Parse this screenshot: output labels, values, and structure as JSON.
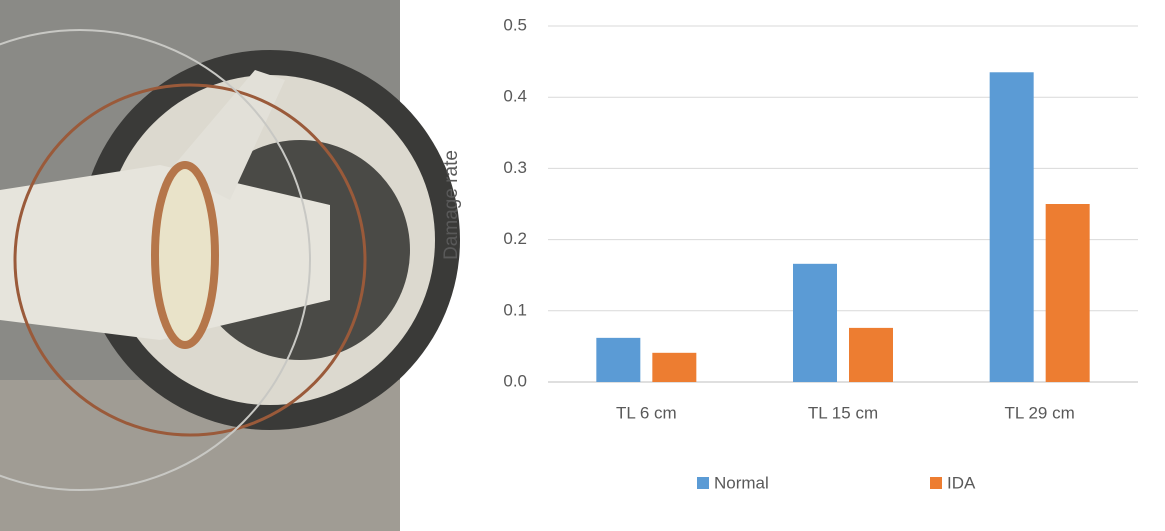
{
  "chart_data": {
    "type": "bar",
    "ylabel": "Damage rate",
    "categories": [
      "TL 6 cm",
      "TL 15 cm",
      "TL 29 cm"
    ],
    "series": [
      {
        "name": "Normal",
        "color": "#5b9bd5",
        "values": [
          0.062,
          0.166,
          0.435
        ]
      },
      {
        "name": "IDA",
        "color": "#ed7d31",
        "values": [
          0.041,
          0.076,
          0.25
        ]
      }
    ],
    "ylim": [
      0,
      0.5
    ],
    "yticks": [
      {
        "value": 0,
        "label": "0.0"
      },
      0.1,
      0.2,
      0.3,
      0.4,
      0.5
    ],
    "grid": true,
    "legend": "bottom"
  }
}
